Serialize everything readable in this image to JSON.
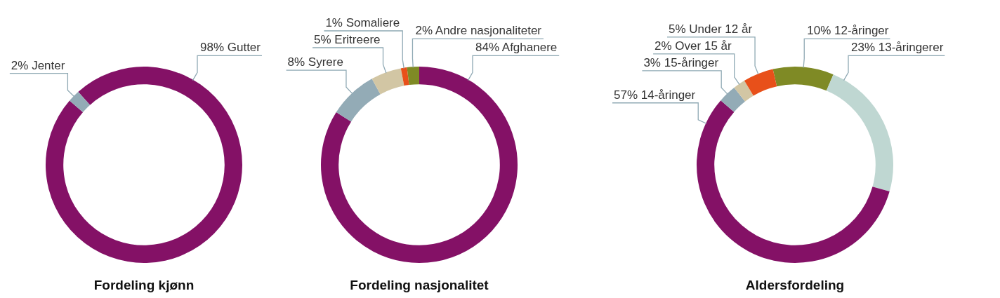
{
  "chart_data": [
    {
      "type": "donut",
      "title": "Fordeling kjønn",
      "categories": [
        "Gutter",
        "Jenter"
      ],
      "values": [
        98,
        2
      ],
      "colors": [
        "#841166",
        "#93abb6"
      ],
      "value_labels": [
        "98%",
        "2%"
      ],
      "legend": false
    },
    {
      "type": "donut",
      "title": "Fordeling nasjonalitet",
      "categories": [
        "Afghanere",
        "Syrere",
        "Eritreere",
        "Somaliere",
        "Andre nasjonaliteter"
      ],
      "values": [
        84,
        8,
        5,
        1,
        2
      ],
      "colors": [
        "#841166",
        "#93abb6",
        "#d2c6a4",
        "#e8501a",
        "#7f8a25"
      ],
      "value_labels": [
        "84%",
        "8%",
        "5%",
        "1%",
        "2%"
      ],
      "legend": false
    },
    {
      "type": "donut",
      "title": "Aldersfordeling",
      "categories": [
        "12-åringer",
        "13-åringerer",
        "14-åringer",
        "15-åringer",
        "Over 15 år",
        "Under 12 år"
      ],
      "values": [
        10,
        23,
        57,
        3,
        2,
        5
      ],
      "colors": [
        "#7f8a25",
        "#bfd7d2",
        "#841166",
        "#93abb6",
        "#d2c6a4",
        "#e8501a"
      ],
      "value_labels": [
        "10%",
        "23%",
        "57%",
        "3%",
        "2%",
        "5%"
      ],
      "legend": false
    }
  ]
}
